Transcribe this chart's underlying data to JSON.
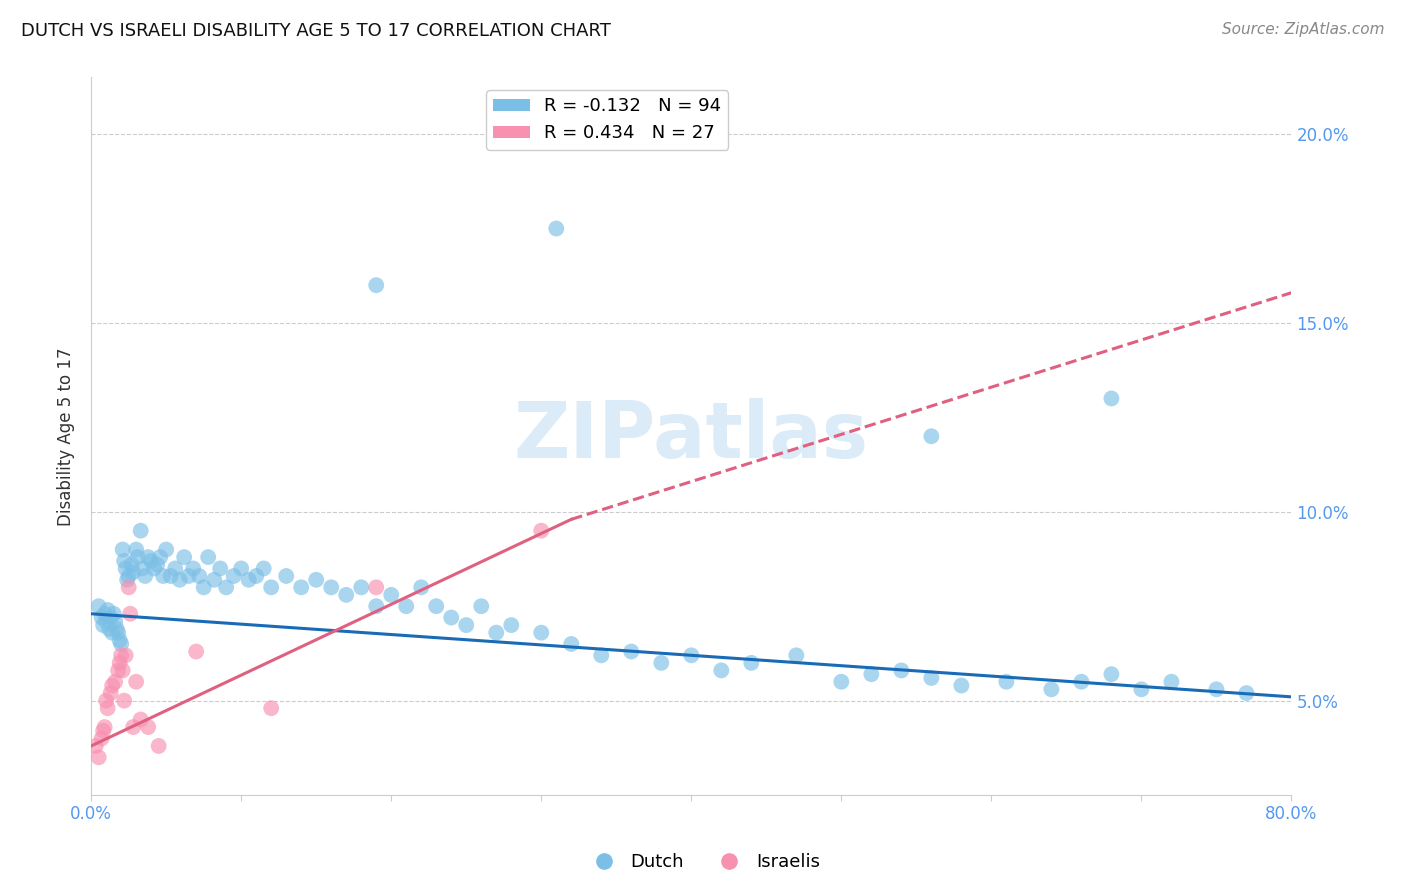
{
  "title": "DUTCH VS ISRAELI DISABILITY AGE 5 TO 17 CORRELATION CHART",
  "source": "Source: ZipAtlas.com",
  "ylabel": "Disability Age 5 to 17",
  "watermark": "ZIPatlas",
  "xlim": [
    0.0,
    0.8
  ],
  "ylim": [
    0.025,
    0.215
  ],
  "yticks": [
    0.05,
    0.1,
    0.15,
    0.2
  ],
  "ytick_labels": [
    "5.0%",
    "10.0%",
    "15.0%",
    "20.0%"
  ],
  "xticks": [
    0.0,
    0.1,
    0.2,
    0.3,
    0.4,
    0.5,
    0.6,
    0.7,
    0.8
  ],
  "xtick_labels": [
    "0.0%",
    "",
    "",
    "",
    "",
    "",
    "",
    "",
    "80.0%"
  ],
  "dutch_R": -0.132,
  "dutch_N": 94,
  "israeli_R": 0.434,
  "israeli_N": 27,
  "dutch_color": "#7bbfe6",
  "israeli_color": "#f890b0",
  "dutch_line_color": "#1a6bb5",
  "israeli_line_color": "#e06080",
  "axis_color": "#5599ee",
  "title_color": "#111111",
  "background_color": "#ffffff",
  "dutch_line_x0": 0.0,
  "dutch_line_y0": 0.073,
  "dutch_line_x1": 0.8,
  "dutch_line_y1": 0.051,
  "israeli_line_x0": 0.0,
  "israeli_line_y0": 0.038,
  "israeli_line_solid_x1": 0.32,
  "israeli_line_solid_y1": 0.098,
  "israeli_line_dash_x1": 0.8,
  "israeli_line_dash_y1": 0.158,
  "dutch_x": [
    0.005,
    0.007,
    0.008,
    0.009,
    0.01,
    0.011,
    0.012,
    0.013,
    0.014,
    0.015,
    0.016,
    0.017,
    0.018,
    0.019,
    0.02,
    0.021,
    0.022,
    0.023,
    0.024,
    0.025,
    0.027,
    0.028,
    0.03,
    0.031,
    0.033,
    0.034,
    0.036,
    0.038,
    0.04,
    0.042,
    0.044,
    0.046,
    0.048,
    0.05,
    0.053,
    0.056,
    0.059,
    0.062,
    0.065,
    0.068,
    0.072,
    0.075,
    0.078,
    0.082,
    0.086,
    0.09,
    0.095,
    0.1,
    0.105,
    0.11,
    0.115,
    0.12,
    0.13,
    0.14,
    0.15,
    0.16,
    0.17,
    0.18,
    0.19,
    0.2,
    0.21,
    0.22,
    0.23,
    0.24,
    0.25,
    0.26,
    0.27,
    0.28,
    0.3,
    0.32,
    0.34,
    0.36,
    0.38,
    0.4,
    0.42,
    0.44,
    0.47,
    0.5,
    0.52,
    0.54,
    0.56,
    0.58,
    0.61,
    0.64,
    0.66,
    0.68,
    0.7,
    0.72,
    0.75,
    0.77,
    0.19,
    0.31,
    0.56,
    0.68
  ],
  "dutch_y": [
    0.075,
    0.072,
    0.07,
    0.073,
    0.071,
    0.074,
    0.069,
    0.072,
    0.068,
    0.073,
    0.071,
    0.069,
    0.068,
    0.066,
    0.065,
    0.09,
    0.087,
    0.085,
    0.082,
    0.083,
    0.086,
    0.084,
    0.09,
    0.088,
    0.095,
    0.085,
    0.083,
    0.088,
    0.087,
    0.085,
    0.086,
    0.088,
    0.083,
    0.09,
    0.083,
    0.085,
    0.082,
    0.088,
    0.083,
    0.085,
    0.083,
    0.08,
    0.088,
    0.082,
    0.085,
    0.08,
    0.083,
    0.085,
    0.082,
    0.083,
    0.085,
    0.08,
    0.083,
    0.08,
    0.082,
    0.08,
    0.078,
    0.08,
    0.075,
    0.078,
    0.075,
    0.08,
    0.075,
    0.072,
    0.07,
    0.075,
    0.068,
    0.07,
    0.068,
    0.065,
    0.062,
    0.063,
    0.06,
    0.062,
    0.058,
    0.06,
    0.062,
    0.055,
    0.057,
    0.058,
    0.056,
    0.054,
    0.055,
    0.053,
    0.055,
    0.057,
    0.053,
    0.055,
    0.053,
    0.052,
    0.16,
    0.175,
    0.12,
    0.13
  ],
  "israeli_x": [
    0.003,
    0.005,
    0.007,
    0.008,
    0.009,
    0.01,
    0.011,
    0.013,
    0.014,
    0.016,
    0.018,
    0.019,
    0.02,
    0.021,
    0.022,
    0.023,
    0.025,
    0.026,
    0.028,
    0.03,
    0.033,
    0.038,
    0.045,
    0.07,
    0.12,
    0.19,
    0.3
  ],
  "israeli_y": [
    0.038,
    0.035,
    0.04,
    0.042,
    0.043,
    0.05,
    0.048,
    0.052,
    0.054,
    0.055,
    0.058,
    0.06,
    0.062,
    0.058,
    0.05,
    0.062,
    0.08,
    0.073,
    0.043,
    0.055,
    0.045,
    0.043,
    0.038,
    0.063,
    0.048,
    0.08,
    0.095
  ]
}
